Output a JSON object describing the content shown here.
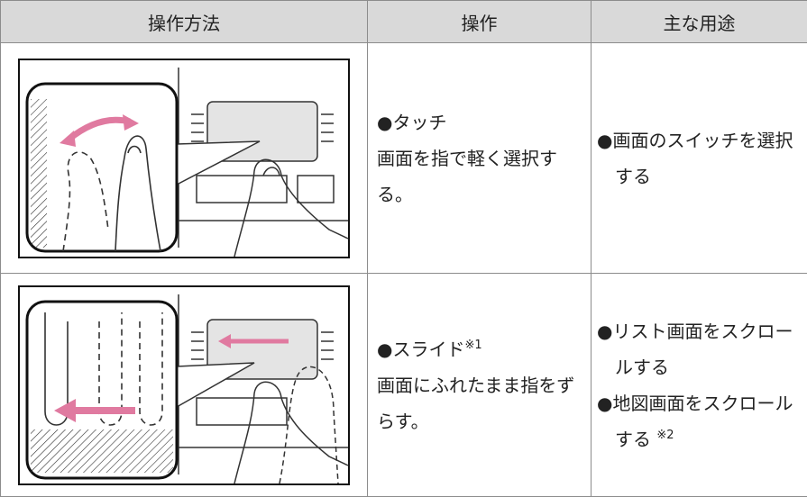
{
  "table": {
    "header": [
      "操作方法",
      "操作",
      "主な用途"
    ],
    "rows": [
      {
        "gesture": "●タッチ",
        "description": "画面を指で軽く選択する。",
        "uses": [
          {
            "text": "●画面のスイッチを選択する"
          }
        ]
      },
      {
        "gesture": "●スライド",
        "gesture_note": "※1",
        "description": "画面にふれたまま指をずらす。",
        "uses": [
          {
            "text": "●リスト画面をスクロールする"
          },
          {
            "text": "●地図画面をスクロールする",
            "note": "※2"
          }
        ]
      }
    ]
  }
}
